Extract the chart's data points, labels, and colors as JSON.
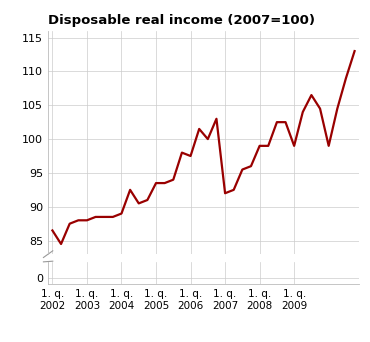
{
  "title": "Disposable real income (2007=100)",
  "line_color": "#990000",
  "line_width": 1.6,
  "background_color": "#ffffff",
  "grid_color": "#cccccc",
  "yticks_main": [
    85,
    90,
    95,
    100,
    105,
    110,
    115
  ],
  "xlabel": "",
  "ylabel": "",
  "x_tick_labels": [
    "1. q.\n2002",
    "1. q.\n2003",
    "1. q.\n2004",
    "1. q.\n2005",
    "1. q.\n2006",
    "1. q.\n2007",
    "1. q.\n2008",
    "1. q.\n2009"
  ],
  "x_tick_positions": [
    0,
    4,
    8,
    12,
    16,
    20,
    24,
    28
  ],
  "values": [
    86.5,
    84.5,
    87.5,
    88.0,
    88.0,
    88.5,
    88.5,
    88.5,
    89.0,
    92.5,
    90.5,
    91.0,
    93.5,
    93.5,
    94.0,
    98.0,
    97.5,
    101.5,
    100.0,
    103.0,
    92.0,
    92.5,
    95.5,
    96.0,
    99.0,
    99.0,
    102.5,
    102.5,
    99.0,
    104.0,
    106.5,
    104.5,
    99.0,
    104.5,
    109.0,
    113.0
  ]
}
